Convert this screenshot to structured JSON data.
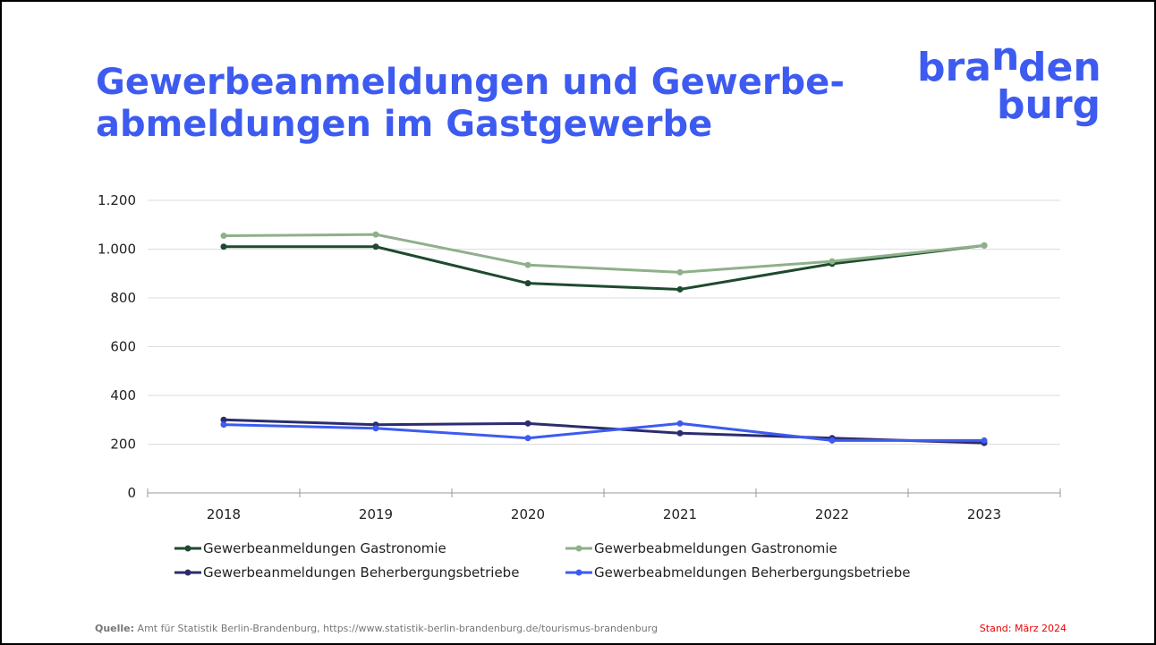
{
  "header": {
    "title_line1": "Gewerbeanmeldungen und Gewerbe-",
    "title_line2": "abmeldungen im Gastgewerbe",
    "logo": {
      "part1": "bra",
      "part2": "n",
      "part3": "den",
      "part4": "burg"
    }
  },
  "chart_data": {
    "type": "line",
    "categories": [
      "2018",
      "2019",
      "2020",
      "2021",
      "2022",
      "2023"
    ],
    "series": [
      {
        "name": "Gewerbeanmeldungen Gastronomie",
        "color": "#1e4a2e",
        "values": [
          1010,
          1010,
          860,
          835,
          940,
          1015
        ]
      },
      {
        "name": "Gewerbeabmeldungen Gastronomie",
        "color": "#8fb08a",
        "values": [
          1055,
          1060,
          935,
          905,
          950,
          1015
        ]
      },
      {
        "name": "Gewerbeanmeldungen Beherbergungsbetriebe",
        "color": "#2b2d6e",
        "values": [
          300,
          280,
          285,
          245,
          225,
          205
        ]
      },
      {
        "name": "Gewerbeabmeldungen Beherbergungsbetriebe",
        "color": "#3d5bf0",
        "values": [
          280,
          265,
          225,
          285,
          215,
          215
        ]
      }
    ],
    "ylim": [
      0,
      1200
    ],
    "yticks": [
      0,
      200,
      400,
      600,
      800,
      {
        "value": 1000,
        "label": "1.000"
      },
      {
        "value": 1200,
        "label": "1.200"
      }
    ],
    "grid": true
  },
  "footer": {
    "source_label": "Quelle:",
    "source_text": "Amt für Statistik Berlin-Brandenburg, https://www.statistik-berlin-brandenburg.de/tourismus-brandenburg",
    "stand": "Stand: März 2024"
  }
}
